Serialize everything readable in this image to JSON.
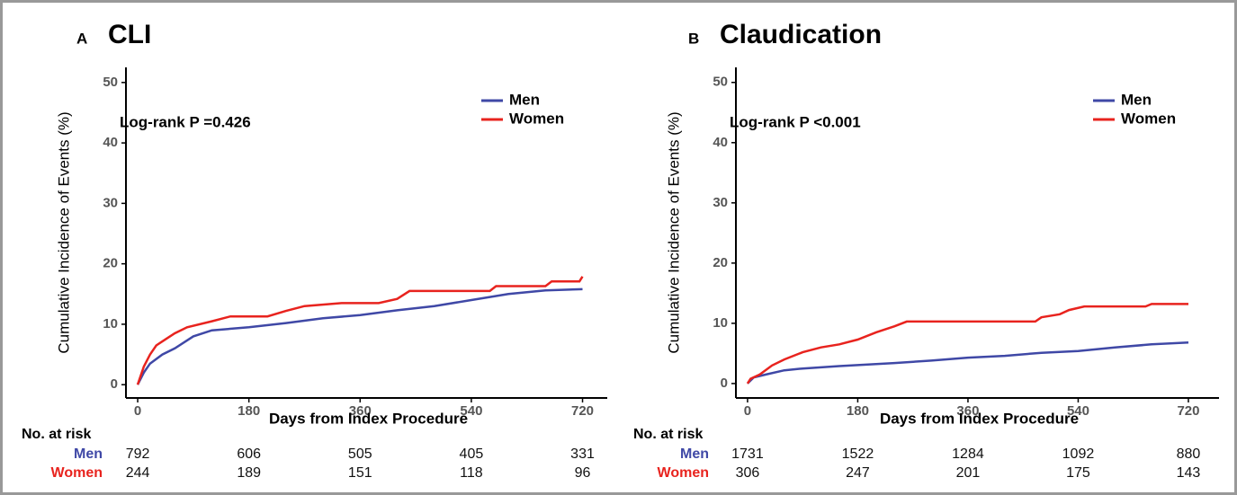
{
  "chart_data": [
    {
      "type": "line",
      "panel": "A",
      "title": "CLI",
      "annotation": "Log-rank P =0.426",
      "x_label": "Days from Index Procedure",
      "y_label": "Cumulative Incidence of Events (%)",
      "xlim": [
        -19,
        760
      ],
      "ylim": [
        -2.2,
        52.5
      ],
      "xticks": [
        0,
        180,
        360,
        540,
        720
      ],
      "yticks": [
        0,
        10,
        20,
        30,
        40,
        50
      ],
      "legend": "top-right",
      "series": [
        {
          "name": "Men",
          "color": "#3f48a6",
          "x": [
            0,
            10,
            20,
            40,
            60,
            90,
            120,
            180,
            240,
            300,
            360,
            420,
            480,
            540,
            600,
            660,
            720
          ],
          "values": [
            0,
            2,
            3.5,
            5,
            6,
            8,
            9,
            9.5,
            10.2,
            11,
            11.5,
            12.3,
            13,
            14,
            15,
            15.6,
            15.8
          ]
        },
        {
          "name": "Women",
          "color": "#e8231e",
          "x": [
            0,
            10,
            20,
            30,
            45,
            60,
            80,
            120,
            150,
            210,
            240,
            270,
            330,
            390,
            420,
            440,
            570,
            580,
            660,
            670,
            715,
            720
          ],
          "values": [
            0,
            3,
            5,
            6.5,
            7.5,
            8.5,
            9.5,
            10.5,
            11.3,
            11.3,
            12.2,
            13,
            13.5,
            13.5,
            14.2,
            15.5,
            15.5,
            16.3,
            16.3,
            17.1,
            17.1,
            17.9
          ]
        }
      ],
      "risk_table": {
        "title": "No. at risk",
        "rows": [
          {
            "name": "Men",
            "color": "#3f48a6",
            "values": [
              792,
              606,
              505,
              405,
              331
            ]
          },
          {
            "name": "Women",
            "color": "#e8231e",
            "values": [
              244,
              189,
              151,
              118,
              96
            ]
          }
        ]
      }
    },
    {
      "type": "line",
      "panel": "B",
      "title": "Claudication",
      "annotation": "Log-rank P <0.001",
      "x_label": "Days from Index Procedure",
      "y_label": "Cumulative Incidence of Events (%)",
      "xlim": [
        -19,
        770
      ],
      "ylim": [
        -2.4,
        52.5
      ],
      "xticks": [
        0,
        180,
        360,
        540,
        720
      ],
      "yticks": [
        0,
        10,
        20,
        30,
        40,
        50
      ],
      "legend": "top-right",
      "series": [
        {
          "name": "Men",
          "color": "#3f48a6",
          "x": [
            0,
            10,
            30,
            60,
            90,
            150,
            240,
            300,
            360,
            420,
            480,
            540,
            600,
            660,
            720
          ],
          "values": [
            0,
            1,
            1.5,
            2.2,
            2.5,
            2.9,
            3.4,
            3.8,
            4.3,
            4.6,
            5.1,
            5.4,
            6,
            6.5,
            6.8
          ]
        },
        {
          "name": "Women",
          "color": "#e8231e",
          "x": [
            0,
            5,
            20,
            40,
            60,
            90,
            120,
            150,
            180,
            210,
            240,
            260,
            470,
            480,
            510,
            525,
            550,
            650,
            660,
            720
          ],
          "values": [
            0,
            0.8,
            1.5,
            3,
            4,
            5.2,
            6,
            6.5,
            7.3,
            8.5,
            9.5,
            10.3,
            10.3,
            11,
            11.5,
            12.2,
            12.8,
            12.8,
            13.2,
            13.2
          ]
        }
      ],
      "risk_table": {
        "title": "No. at risk",
        "rows": [
          {
            "name": "Men",
            "color": "#3f48a6",
            "values": [
              1731,
              1522,
              1284,
              1092,
              880
            ]
          },
          {
            "name": "Women",
            "color": "#e8231e",
            "values": [
              306,
              247,
              201,
              175,
              143
            ]
          }
        ]
      }
    }
  ]
}
